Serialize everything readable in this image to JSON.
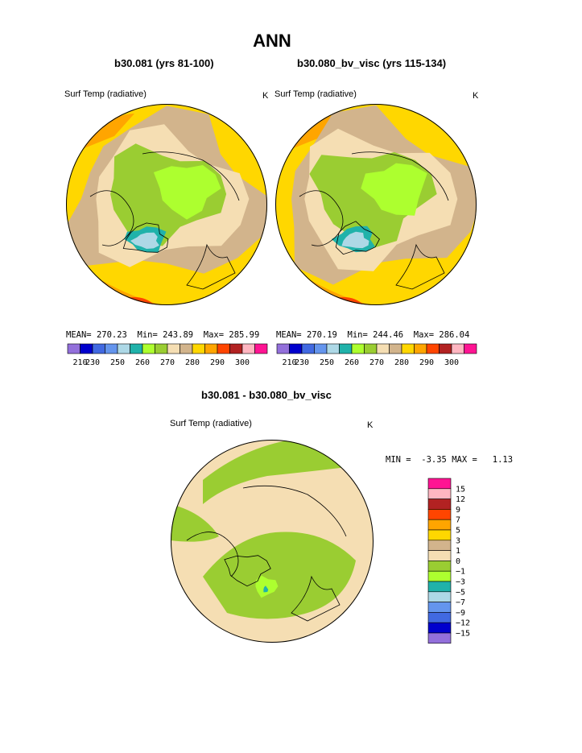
{
  "page": {
    "title": "ANN",
    "units": "K"
  },
  "panels": [
    {
      "id": "left",
      "case_title": "b30.081 (yrs 81-100)",
      "variable": "Surf Temp (radiative)",
      "units": "K",
      "stats": {
        "mean_label": "MEAN=",
        "mean": "270.23",
        "min_label": "Min=",
        "min": "243.89",
        "max_label": "Max=",
        "max": "285.99"
      }
    },
    {
      "id": "right",
      "case_title": "b30.080_bv_visc (yrs 115-134)",
      "variable": "Surf Temp (radiative)",
      "units": "K",
      "stats": {
        "mean_label": "MEAN=",
        "mean": "270.19",
        "min_label": "Min=",
        "min": "244.46",
        "max_label": "Max=",
        "max": "286.04"
      }
    },
    {
      "id": "diff",
      "case_title": "b30.081 - b30.080_bv_visc",
      "variable": "Surf Temp (radiative)",
      "units": "K",
      "stats": {
        "min_label": "MIN =",
        "min": "-3.35",
        "max_label": "MAX =",
        "max": "1.13"
      }
    }
  ],
  "chart_data": [
    {
      "type": "heatmap",
      "projection": "north-polar-stereographic",
      "title": "b30.081 (yrs 81-100)",
      "colorbar": {
        "orientation": "horizontal",
        "tick_labels": [
          "210",
          "230",
          "250",
          "260",
          "270",
          "280",
          "290",
          "300"
        ],
        "colors": [
          "#9370db",
          "#0000cd",
          "#4169e1",
          "#6495ed",
          "#add8e6",
          "#20b2aa",
          "#adff2f",
          "#9acd32",
          "#f5deb3",
          "#d2b48c",
          "#ffd700",
          "#ffa500",
          "#ff4500",
          "#b22222",
          "#ffb6c1",
          "#ff1493"
        ]
      }
    },
    {
      "type": "heatmap",
      "projection": "north-polar-stereographic",
      "title": "b30.080_bv_visc (yrs 115-134)",
      "colorbar": {
        "orientation": "horizontal",
        "tick_labels": [
          "210",
          "230",
          "250",
          "260",
          "270",
          "280",
          "290",
          "300"
        ],
        "colors": [
          "#9370db",
          "#0000cd",
          "#4169e1",
          "#6495ed",
          "#add8e6",
          "#20b2aa",
          "#adff2f",
          "#9acd32",
          "#f5deb3",
          "#d2b48c",
          "#ffd700",
          "#ffa500",
          "#ff4500",
          "#b22222",
          "#ffb6c1",
          "#ff1493"
        ]
      }
    },
    {
      "type": "heatmap",
      "projection": "north-polar-stereographic",
      "title": "b30.081 - b30.080_bv_visc",
      "colorbar": {
        "orientation": "vertical",
        "tick_labels": [
          "15",
          "12",
          "9",
          "7",
          "5",
          "3",
          "1",
          "0",
          "−1",
          "−3",
          "−5",
          "−7",
          "−9",
          "−12",
          "−15"
        ],
        "colors": [
          "#ff1493",
          "#ffb6c1",
          "#b22222",
          "#ff4500",
          "#ffa500",
          "#ffd700",
          "#d2b48c",
          "#f5deb3",
          "#9acd32",
          "#adff2f",
          "#20b2aa",
          "#add8e6",
          "#6495ed",
          "#4169e1",
          "#0000cd",
          "#9370db"
        ]
      }
    }
  ]
}
